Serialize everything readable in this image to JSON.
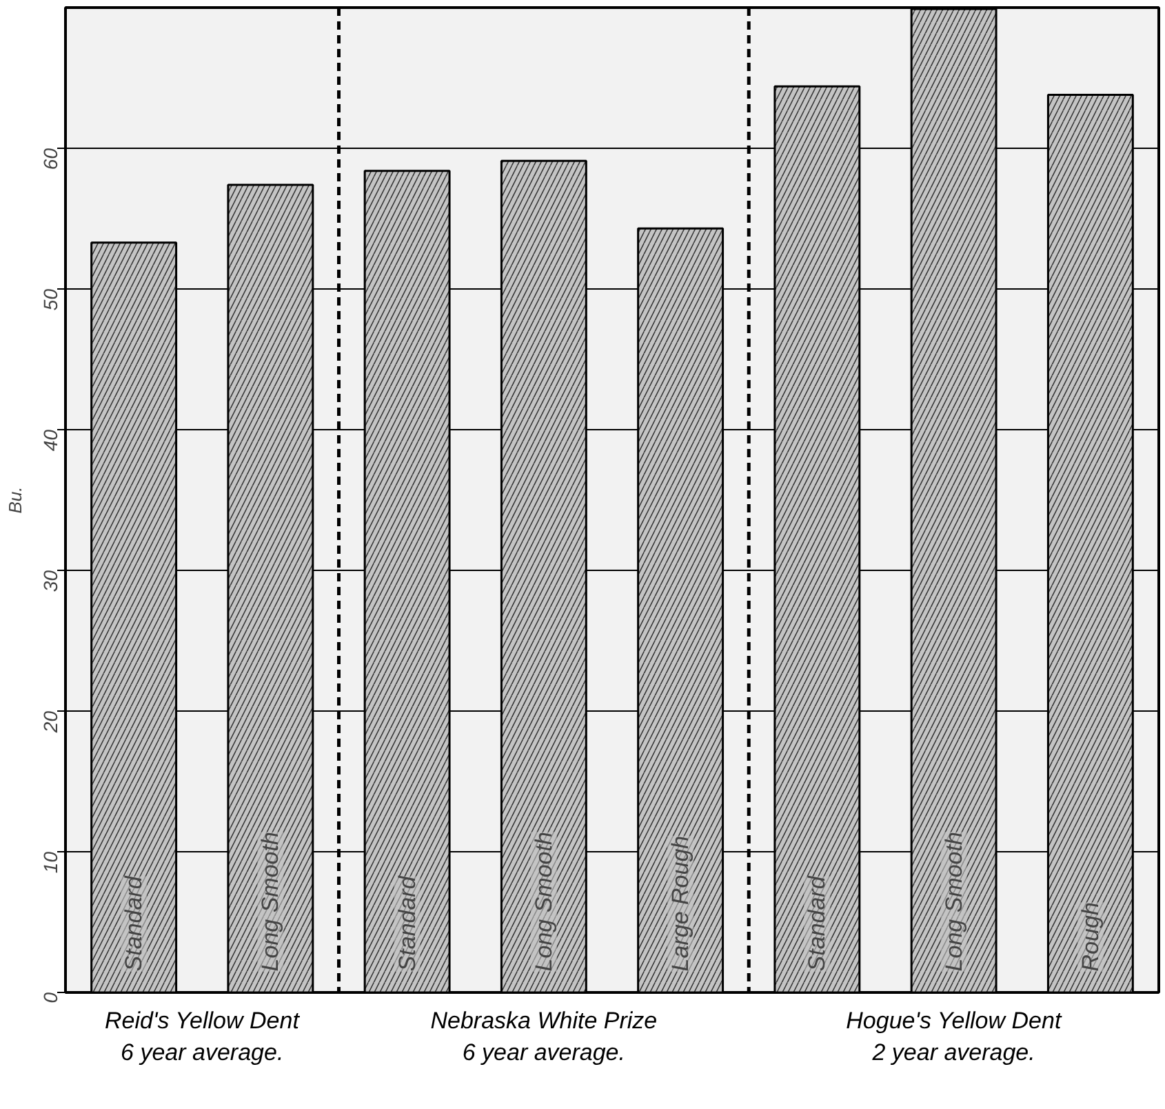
{
  "chart_data": {
    "type": "bar",
    "ylabel": "Bu.",
    "categories": [
      "Standard",
      "Long Smooth",
      "Standard",
      "Long Smooth",
      "Large Rough",
      "Standard",
      "Long Smooth",
      "Rough"
    ],
    "values": [
      53.3,
      57.4,
      58.4,
      59.1,
      54.3,
      64.4,
      69.9,
      63.8
    ],
    "color": "#c4c4c4",
    "ylim": [
      0,
      70
    ],
    "yticks": [
      0,
      10,
      20,
      30,
      40,
      50,
      60
    ],
    "grid": "y",
    "annotations": [
      "Reid's Yellow Dent\n6 year average.",
      "Nebraska White Prize\n6 year average.",
      "Hogue's Yellow Dent\n2 year average."
    ]
  }
}
